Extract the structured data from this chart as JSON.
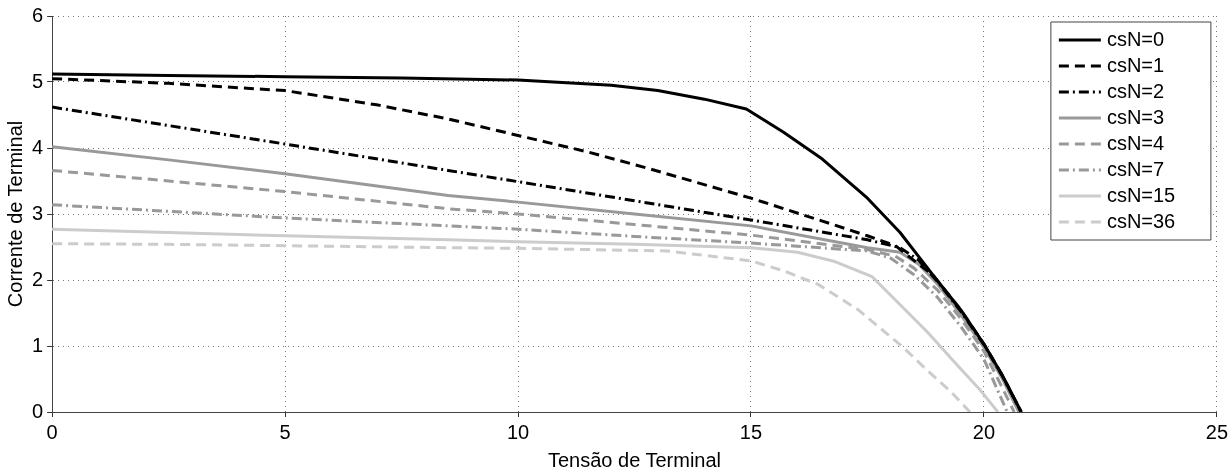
{
  "chart_data": {
    "type": "line",
    "xlabel": "Tensão de Terminal",
    "ylabel": "Corrente de Terminal",
    "xlim": [
      0,
      25
    ],
    "xticks": [
      0,
      5,
      10,
      15,
      20,
      25
    ],
    "ylim": [
      0,
      6
    ],
    "yticks": [
      0,
      1,
      2,
      3,
      4,
      5,
      6
    ],
    "grid": true,
    "legend": "top right",
    "marker": "none",
    "series": [
      {
        "name": "csN=0",
        "color": "#000000",
        "line_style": "solid",
        "x": [
          0,
          2.5,
          5,
          7.5,
          10,
          12,
          13,
          14,
          14.9,
          15.7,
          16.5,
          17.5,
          18.2,
          18.9,
          19.5,
          20,
          20.4,
          20.8
        ],
        "values": [
          5.12,
          5.1,
          5.08,
          5.06,
          5.03,
          4.95,
          4.87,
          4.74,
          4.59,
          4.24,
          3.85,
          3.24,
          2.72,
          2.08,
          1.55,
          1.03,
          0.55,
          0
        ]
      },
      {
        "name": "csN=1",
        "color": "#000000",
        "line_style": "dashed",
        "x": [
          0,
          2.5,
          5,
          7,
          8.5,
          10,
          11.5,
          12.8,
          15,
          16.5,
          17.5,
          18.1,
          18.4,
          18.9,
          19.5,
          20,
          20.4,
          20.8
        ],
        "values": [
          5.05,
          4.98,
          4.87,
          4.65,
          4.44,
          4.19,
          3.94,
          3.69,
          3.24,
          2.9,
          2.67,
          2.52,
          2.35,
          2.08,
          1.55,
          1.03,
          0.55,
          0
        ]
      },
      {
        "name": "csN=2",
        "color": "#000000",
        "line_style": "dashdot",
        "x": [
          0,
          2.5,
          5,
          8.5,
          10,
          12.5,
          15,
          17.5,
          18.2,
          18.6,
          19,
          19.5,
          20,
          20.4,
          20.8
        ],
        "values": [
          4.62,
          4.34,
          4.06,
          3.66,
          3.49,
          3.2,
          2.91,
          2.61,
          2.49,
          2.3,
          1.98,
          1.53,
          1.02,
          0.54,
          0
        ]
      },
      {
        "name": "csN=3",
        "color": "#999999",
        "line_style": "solid",
        "x": [
          0,
          2.5,
          5,
          8.5,
          10,
          12.5,
          15,
          17.5,
          18.2,
          18.6,
          19,
          19.5,
          20,
          20.4,
          20.75
        ],
        "values": [
          4.02,
          3.82,
          3.61,
          3.28,
          3.18,
          3.0,
          2.82,
          2.49,
          2.42,
          2.24,
          1.94,
          1.48,
          0.98,
          0.5,
          0
        ]
      },
      {
        "name": "csN=4",
        "color": "#999999",
        "line_style": "dashed",
        "x": [
          0,
          2.5,
          5,
          8.5,
          10,
          12.5,
          15,
          17.5,
          18.1,
          18.5,
          19,
          19.5,
          20,
          20.3,
          20.65
        ],
        "values": [
          3.66,
          3.5,
          3.34,
          3.08,
          3.0,
          2.84,
          2.68,
          2.46,
          2.36,
          2.18,
          1.85,
          1.42,
          0.92,
          0.5,
          0
        ]
      },
      {
        "name": "csN=7",
        "color": "#999999",
        "line_style": "dashdot",
        "x": [
          0,
          2.5,
          5,
          8.5,
          10,
          12.5,
          15,
          17.5,
          18,
          18.5,
          19,
          19.5,
          20,
          20.5
        ],
        "values": [
          3.14,
          3.04,
          2.94,
          2.82,
          2.77,
          2.66,
          2.56,
          2.44,
          2.33,
          2.08,
          1.74,
          1.3,
          0.8,
          0
        ]
      },
      {
        "name": "csN=15",
        "color": "#cccccc",
        "line_style": "solid",
        "x": [
          0,
          2.5,
          5,
          8.5,
          10,
          12.5,
          15,
          16,
          16.8,
          17.6,
          18.25,
          18.8,
          19.4,
          19.9,
          20.3
        ],
        "values": [
          2.77,
          2.72,
          2.67,
          2.61,
          2.58,
          2.54,
          2.49,
          2.42,
          2.28,
          2.05,
          1.59,
          1.2,
          0.73,
          0.35,
          0
        ]
      },
      {
        "name": "csN=36",
        "color": "#cccccc",
        "line_style": "dashed",
        "x": [
          0,
          2.5,
          5,
          8.5,
          10,
          13.2,
          15,
          15.7,
          16.45,
          17.3,
          18.25,
          18.8,
          19.3,
          19.7
        ],
        "values": [
          2.55,
          2.54,
          2.52,
          2.49,
          2.48,
          2.44,
          2.29,
          2.14,
          1.93,
          1.55,
          0.99,
          0.62,
          0.3,
          0
        ]
      }
    ]
  }
}
